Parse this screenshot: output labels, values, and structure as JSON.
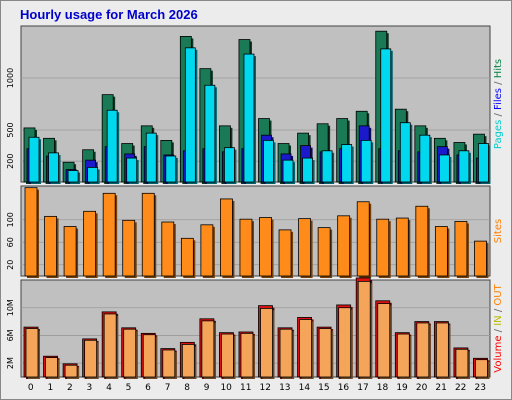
{
  "chart_data": {
    "type": "bar",
    "title": "Hourly usage for March 2026",
    "categories": [
      "0",
      "1",
      "2",
      "3",
      "4",
      "5",
      "6",
      "7",
      "8",
      "9",
      "10",
      "11",
      "12",
      "13",
      "14",
      "15",
      "16",
      "17",
      "18",
      "19",
      "20",
      "21",
      "22",
      "23"
    ],
    "panels": [
      {
        "id": "top",
        "ylim": [
          0,
          1500
        ],
        "ticks": [
          {
            "value": 200,
            "label": "200"
          },
          {
            "value": 500,
            "label": "500"
          },
          {
            "value": 1000,
            "label": "1000"
          }
        ],
        "legend": [
          {
            "text": "Pages",
            "color": "#00cccc"
          },
          {
            "text": " / ",
            "color": "#666666"
          },
          {
            "text": "Files",
            "color": "#0000ff"
          },
          {
            "text": " / ",
            "color": "#666666"
          },
          {
            "text": "Hits",
            "color": "#008040"
          }
        ],
        "series": [
          {
            "key": "hits",
            "color": "#1a7a55",
            "values": [
              520,
              420,
              190,
              310,
              840,
              370,
              540,
              400,
              1400,
              1090,
              540,
              1370,
              610,
              370,
              470,
              560,
              610,
              680,
              1450,
              700,
              540,
              420,
              380,
              460
            ]
          },
          {
            "key": "files",
            "color": "#1a1acc",
            "values": [
              320,
              250,
              120,
              210,
              340,
              270,
              340,
              260,
              300,
              320,
              290,
              320,
              450,
              270,
              350,
              290,
              320,
              540,
              320,
              300,
              290,
              340,
              260,
              230
            ]
          },
          {
            "key": "pages",
            "color": "#00d8f0",
            "values": [
              430,
              280,
              110,
              140,
              690,
              230,
              470,
              250,
              1290,
              930,
              330,
              1230,
              400,
              210,
              230,
              300,
              360,
              400,
              1280,
              570,
              450,
              260,
              300,
              370
            ]
          }
        ]
      },
      {
        "id": "mid",
        "ylim": [
          0,
          160
        ],
        "ticks": [
          {
            "value": 20,
            "label": "20"
          },
          {
            "value": 60,
            "label": "60"
          },
          {
            "value": 100,
            "label": "100"
          }
        ],
        "legend": [
          {
            "text": "Sites",
            "color": "#ff8000"
          }
        ],
        "series": [
          {
            "key": "sites",
            "color": "#ff8c1a",
            "values": [
              157,
              106,
              88,
              115,
              147,
              99,
              147,
              96,
              67,
              91,
              137,
              101,
              104,
              82,
              102,
              86,
              107,
              132,
              101,
              103,
              124,
              88,
              97,
              62
            ]
          }
        ]
      },
      {
        "id": "bot",
        "ylim": [
          0,
          14
        ],
        "ticks": [
          {
            "value": 2,
            "label": "2M"
          },
          {
            "value": 6,
            "label": "6M"
          },
          {
            "value": 10,
            "label": "10M"
          }
        ],
        "legend": [
          {
            "text": "Volume",
            "color": "#ff0000"
          },
          {
            "text": " / ",
            "color": "#666666"
          },
          {
            "text": "IN",
            "color": "#b8b800"
          },
          {
            "text": " / ",
            "color": "#666666"
          },
          {
            "text": "OUT",
            "color": "#ff8000"
          }
        ],
        "series": [
          {
            "key": "volume",
            "color": "#dd1111",
            "values": [
              7.2,
              3.0,
              1.9,
              5.5,
              9.4,
              7.1,
              6.3,
              4.1,
              5.0,
              8.4,
              6.4,
              6.5,
              10.3,
              7.1,
              8.6,
              7.2,
              10.4,
              14.3,
              11.0,
              6.4,
              8.0,
              8.0,
              4.2,
              2.7
            ]
          },
          {
            "key": "out",
            "color": "#f5a55a",
            "values": [
              7.0,
              2.8,
              1.7,
              5.3,
              9.1,
              6.9,
              6.1,
              3.9,
              4.7,
              8.1,
              6.2,
              6.3,
              9.9,
              6.9,
              8.3,
              7.0,
              10.0,
              13.8,
              10.6,
              6.2,
              7.8,
              7.8,
              4.0,
              2.5
            ]
          }
        ]
      }
    ]
  }
}
